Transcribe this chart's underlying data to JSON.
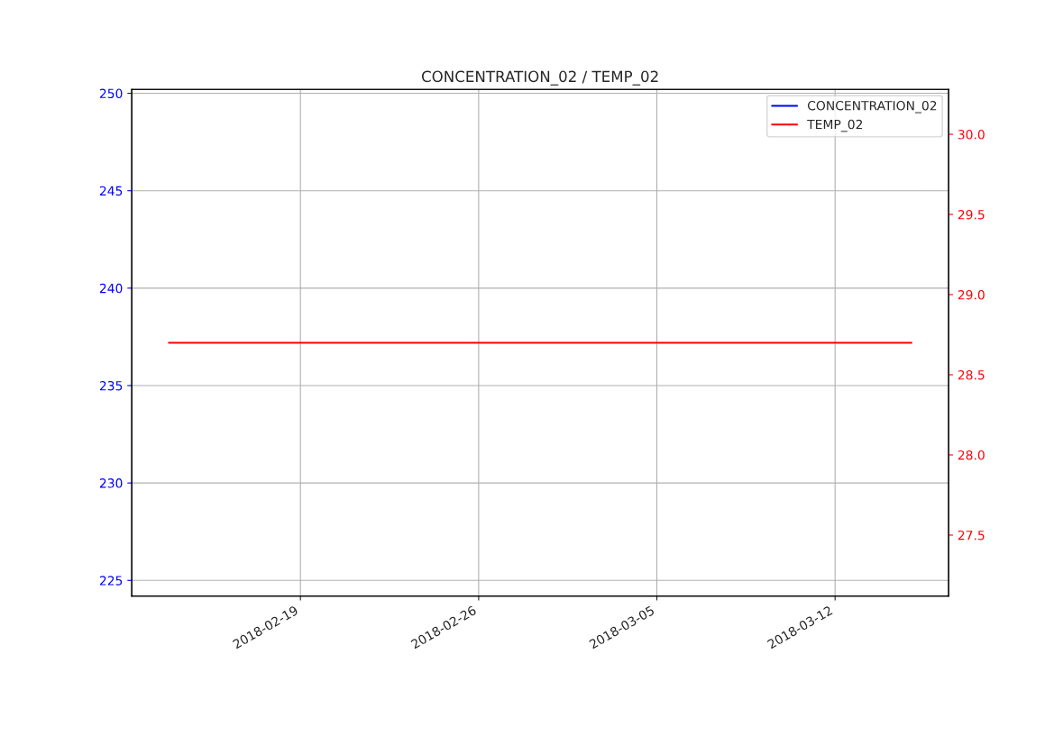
{
  "chart_data": {
    "type": "line",
    "title": "CONCENTRATION_02 / TEMP_02",
    "x": [
      "2018-02-13T20:00",
      "2018-03-15T00:00"
    ],
    "series": [
      {
        "name": "CONCENTRATION_02",
        "color": "#0000ff",
        "values": [
          null,
          null
        ]
      },
      {
        "name": "TEMP_02",
        "color": "#ff0000",
        "values": [
          28.7,
          28.7
        ],
        "axis": "y2"
      }
    ],
    "xlim": [
      "2018-02-12T09:00",
      "2018-03-16T11:00"
    ],
    "xticks": [
      "2018-02-19",
      "2018-02-26",
      "2018-03-05",
      "2018-03-12"
    ],
    "ylim": [
      224.2,
      250.2
    ],
    "yticks": [
      225,
      230,
      235,
      240,
      245,
      250
    ],
    "y2lim": [
      27.12,
      30.28
    ],
    "y2ticks": [
      27.5,
      {
        "value": 28,
        "label": "28.0"
      },
      28.5,
      {
        "value": 29,
        "label": "29.0"
      },
      29.5,
      {
        "value": 30,
        "label": "30.0"
      }
    ],
    "grid": true,
    "legend": "top right",
    "line_style": "solid",
    "marker": "none"
  }
}
